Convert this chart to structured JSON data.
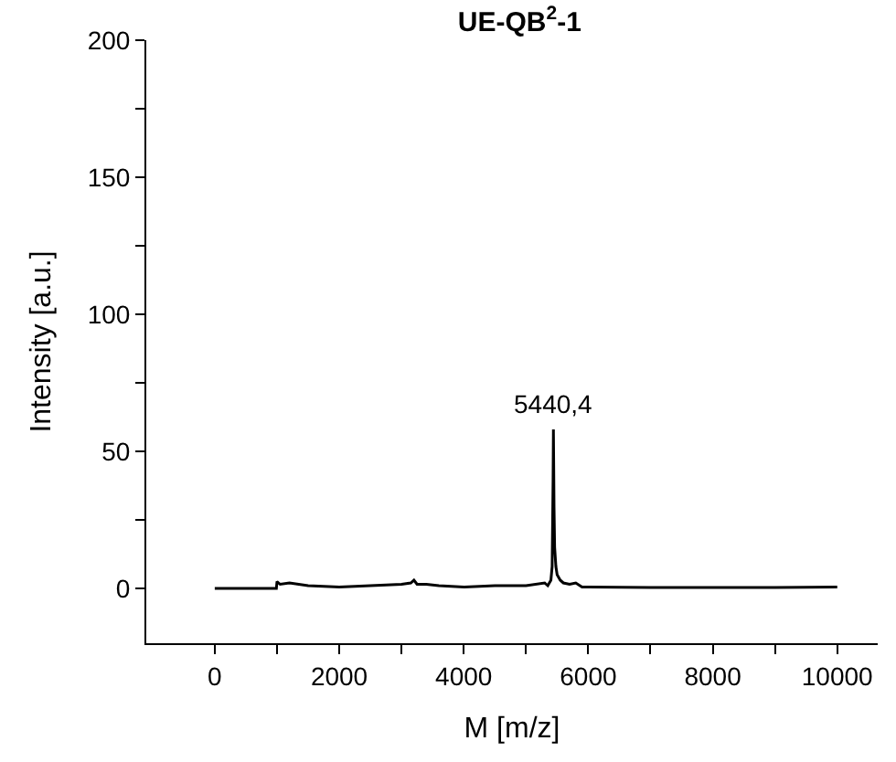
{
  "chart_data": {
    "type": "line",
    "title": "UE-QB$^{2}$-1",
    "xlabel": "M [m/z]",
    "ylabel": "Intensity [a.u.]",
    "x": [
      0,
      990,
      1000,
      1050,
      1200,
      1500,
      2000,
      2500,
      3000,
      3150,
      3200,
      3250,
      3400,
      3600,
      4000,
      4500,
      5000,
      5300,
      5350,
      5400,
      5420,
      5435,
      5440.4,
      5450,
      5460,
      5480,
      5500,
      5550,
      5600,
      5700,
      5800,
      5900,
      6000,
      7000,
      8000,
      9000,
      10000
    ],
    "series": [
      {
        "color": "#000000",
        "values": [
          0,
          0,
          2.5,
          1.5,
          2,
          1,
          0.5,
          1,
          1.5,
          2,
          3,
          1.5,
          1.5,
          1,
          0.5,
          1,
          1,
          2,
          1,
          3,
          8,
          40,
          58,
          30,
          15,
          8,
          5,
          3,
          2,
          1.5,
          2,
          0.5,
          0.5,
          0.3,
          0.3,
          0.3,
          0.5
        ]
      }
    ],
    "annotations": [
      {
        "text": "5440,4",
        "x": 5440.4,
        "y": 58
      }
    ],
    "xlim": [
      -1100,
      10650
    ],
    "ylim": [
      -20,
      200
    ],
    "xticks": [
      0,
      {
        "value": 1000,
        "label": null
      },
      2000,
      {
        "value": 3000,
        "label": null
      },
      4000,
      {
        "value": 5000,
        "label": null
      },
      6000,
      {
        "value": 7000,
        "label": null
      },
      8000,
      {
        "value": 9000,
        "label": null
      },
      10000
    ],
    "yticks": [
      0,
      {
        "value": 25,
        "label": null
      },
      50,
      {
        "value": 75,
        "label": null
      },
      100,
      {
        "value": 125,
        "label": null
      },
      150,
      {
        "value": 175,
        "label": null
      },
      200
    ],
    "marker": "none",
    "line_style": "solid"
  }
}
